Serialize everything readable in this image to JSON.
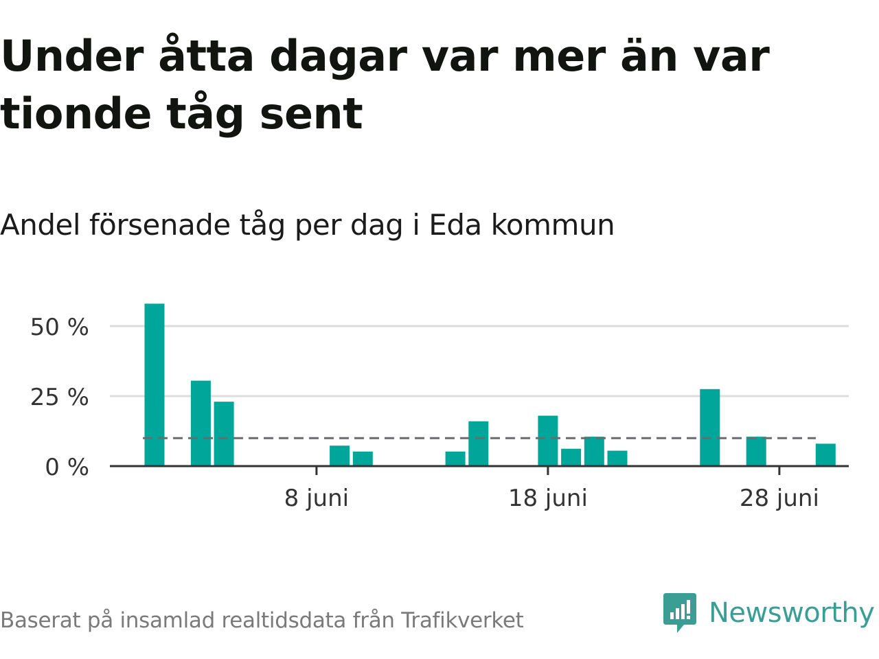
{
  "header": {
    "title": "Under åtta dagar var mer än var tionde tåg sent",
    "subtitle": "Andel försenade tåg per dag i Eda kommun"
  },
  "footer": {
    "source": "Baserat på insamlad realtidsdata från Trafikverket",
    "brand": "Newsworthy"
  },
  "colors": {
    "bar": "#00a69a",
    "brand": "#3a9e94",
    "reference_line": "#6b6b70",
    "grid": "#dddddd",
    "axis": "#333333"
  },
  "icons": {
    "logo": "newsworthy-logo-icon"
  },
  "chart_data": {
    "type": "bar",
    "x": [
      1,
      2,
      3,
      4,
      5,
      6,
      7,
      8,
      9,
      10,
      11,
      12,
      13,
      14,
      15,
      16,
      17,
      18,
      19,
      20,
      21,
      22,
      23,
      24,
      25,
      26,
      27,
      28,
      29,
      30
    ],
    "values": [
      58,
      0,
      30.5,
      23,
      0,
      0,
      0,
      0,
      7.3,
      5.2,
      0,
      0,
      0,
      5.2,
      16,
      0,
      0,
      18,
      6.2,
      10.5,
      5.5,
      0,
      0,
      0,
      27.5,
      0,
      10.5,
      0,
      0,
      8
    ],
    "reference_line": 10,
    "yticks": [
      0,
      25,
      50
    ],
    "ytick_labels": [
      "0 %",
      "25 %",
      "50 %"
    ],
    "xticks": [
      8,
      18,
      28
    ],
    "xtick_labels": [
      "8 juni",
      "18 juni",
      "28 juni"
    ],
    "ylim": [
      0,
      62
    ],
    "xlabel": "",
    "ylabel": "",
    "grid": true
  }
}
